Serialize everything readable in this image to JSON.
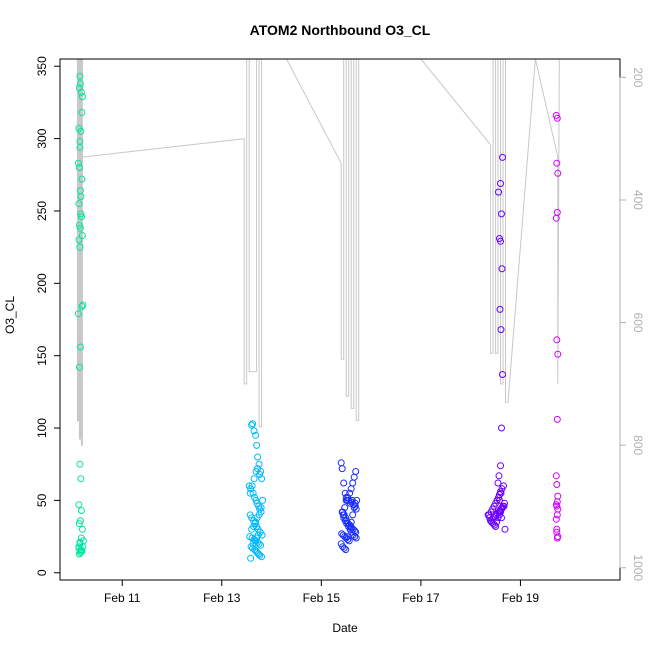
{
  "chart_data": {
    "type": "scatter",
    "title": "ATOM2 Northbound O3_CL",
    "xlabel": "Date",
    "ylabel": "O3_CL",
    "x_ticks": [
      "Feb 11",
      "Feb 13",
      "Feb 15",
      "Feb 17",
      "Feb 19"
    ],
    "x_tick_values": [
      11,
      13,
      15,
      17,
      19
    ],
    "xlim": [
      9.75,
      21.0
    ],
    "ylim": [
      -5,
      355
    ],
    "y_ticks": [
      0,
      50,
      100,
      150,
      200,
      250,
      300,
      350
    ],
    "y2_label": "",
    "y2_ticks": [
      200,
      400,
      600,
      800,
      1000
    ],
    "y2_lim": [
      1020,
      170
    ],
    "y2_reversed": true,
    "colors": {
      "flight1": "#00e5a0",
      "flight2": "#00b8ff",
      "flight3": "#1a2fff",
      "flight4": "#6a00ff",
      "flight5": "#d600ff",
      "profile": "#c8c8c8"
    },
    "series": [
      {
        "color_key": "flight1",
        "x": [
          10.15,
          10.16,
          10.18,
          10.14,
          10.13,
          10.17,
          10.15,
          10.2,
          10.19,
          10.12,
          10.14,
          10.16,
          10.18,
          10.13,
          10.15,
          10.17,
          10.19,
          10.14,
          10.16,
          10.2,
          10.13,
          10.15,
          10.18,
          10.17,
          10.12,
          10.14,
          10.16,
          10.21,
          10.19,
          10.15,
          10.17,
          10.13,
          10.18,
          10.16,
          10.14,
          10.2,
          10.22,
          10.15,
          10.13,
          10.17,
          10.19,
          10.16,
          10.14,
          10.18,
          10.15,
          10.21,
          10.13,
          10.17
        ],
        "y": [
          343,
          338,
          332,
          335,
          307,
          305,
          298,
          329,
          318,
          283,
          280,
          264,
          246,
          255,
          294,
          260,
          272,
          240,
          238,
          233,
          230,
          225,
          246,
          248,
          179,
          142,
          156,
          185,
          184,
          75,
          65,
          47,
          43,
          36,
          34,
          30,
          22,
          20,
          18,
          16,
          15,
          14,
          13,
          24,
          21,
          18,
          17,
          15
        ]
      },
      {
        "color_key": "flight2",
        "x": [
          13.6,
          13.62,
          13.65,
          13.68,
          13.7,
          13.72,
          13.75,
          13.78,
          13.8,
          13.55,
          13.58,
          13.63,
          13.66,
          13.69,
          13.71,
          13.74,
          13.76,
          13.79,
          13.57,
          13.6,
          13.64,
          13.67,
          13.7,
          13.73,
          13.77,
          13.81,
          13.56,
          13.61,
          13.65,
          13.68,
          13.72,
          13.75,
          13.78,
          13.59,
          13.62,
          13.66,
          13.69,
          13.71,
          13.74,
          13.76,
          13.8,
          13.58,
          13.63,
          13.67,
          13.7,
          13.73,
          13.77,
          13.6,
          13.64,
          13.68,
          13.71,
          13.75,
          13.79,
          13.82,
          13.57,
          13.61,
          13.65,
          13.69,
          13.72,
          13.76
        ],
        "y": [
          102,
          103,
          98,
          95,
          88,
          80,
          75,
          70,
          65,
          60,
          58,
          55,
          52,
          50,
          48,
          46,
          44,
          42,
          40,
          38,
          36,
          34,
          32,
          30,
          28,
          26,
          25,
          24,
          23,
          22,
          21,
          20,
          19,
          18,
          17,
          16,
          15,
          14,
          13,
          12,
          11,
          10,
          20,
          22,
          24,
          26,
          28,
          30,
          32,
          35,
          38,
          40,
          45,
          50,
          55,
          60,
          65,
          70,
          72,
          68
        ]
      },
      {
        "color_key": "flight3",
        "x": [
          15.4,
          15.42,
          15.45,
          15.48,
          15.5,
          15.52,
          15.55,
          15.58,
          15.6,
          15.62,
          15.65,
          15.68,
          15.7,
          15.43,
          15.46,
          15.49,
          15.51,
          15.54,
          15.57,
          15.59,
          15.61,
          15.64,
          15.67,
          15.69,
          15.41,
          15.44,
          15.47,
          15.5,
          15.53,
          15.56,
          15.58,
          15.6,
          15.63,
          15.66,
          15.68,
          15.71,
          15.42,
          15.45,
          15.48,
          15.51,
          15.55,
          15.58,
          15.61,
          15.64,
          15.67,
          15.7,
          15.44,
          15.47,
          15.5,
          15.53,
          15.57,
          15.6,
          15.63,
          15.66,
          15.69,
          15.4,
          15.43,
          15.46,
          15.49,
          15.52
        ],
        "y": [
          76,
          72,
          62,
          55,
          52,
          50,
          50,
          48,
          49,
          50,
          47,
          46,
          44,
          42,
          40,
          38,
          36,
          34,
          33,
          32,
          31,
          30,
          29,
          28,
          27,
          26,
          25,
          24,
          23,
          22,
          30,
          35,
          40,
          45,
          48,
          50,
          42,
          38,
          36,
          34,
          32,
          30,
          28,
          26,
          25,
          24,
          40,
          45,
          50,
          52,
          55,
          58,
          62,
          66,
          70,
          20,
          18,
          17,
          16,
          25
        ]
      },
      {
        "color_key": "flight4",
        "x": [
          18.35,
          18.38,
          18.4,
          18.42,
          18.45,
          18.48,
          18.5,
          18.52,
          18.55,
          18.58,
          18.6,
          18.62,
          18.65,
          18.68,
          18.4,
          18.43,
          18.46,
          18.49,
          18.51,
          18.54,
          18.57,
          18.59,
          18.61,
          18.64,
          18.67,
          18.37,
          18.41,
          18.44,
          18.47,
          18.5,
          18.53,
          18.56,
          18.58,
          18.6,
          18.63,
          18.66,
          18.69,
          18.55,
          18.57,
          18.6,
          18.62,
          18.64,
          18.61,
          18.59,
          18.63,
          18.6,
          18.58,
          18.62,
          18.56,
          18.6,
          18.64,
          18.58,
          18.61,
          18.63,
          18.59,
          18.62
        ],
        "y": [
          40,
          38,
          36,
          35,
          34,
          33,
          32,
          35,
          38,
          40,
          42,
          44,
          46,
          48,
          36,
          37,
          38,
          39,
          40,
          41,
          42,
          43,
          44,
          45,
          46,
          40,
          42,
          44,
          46,
          48,
          50,
          52,
          54,
          56,
          58,
          60,
          30,
          62,
          67,
          74,
          100,
          137,
          168,
          182,
          210,
          229,
          231,
          248,
          263,
          269,
          287,
          50,
          55,
          45,
          42,
          38
        ]
      },
      {
        "color_key": "flight5",
        "x": [
          19.72,
          19.74,
          19.73,
          19.75,
          19.74,
          19.72,
          19.73,
          19.75,
          19.74,
          19.72,
          19.73,
          19.75,
          19.74,
          19.72,
          19.73,
          19.75,
          19.74,
          19.72,
          19.73,
          19.75,
          19.74,
          19.73
        ],
        "y": [
          316,
          314,
          283,
          276,
          249,
          245,
          161,
          151,
          106,
          67,
          61,
          53,
          49,
          47,
          46,
          44,
          40,
          37,
          28,
          25,
          24,
          30
        ]
      }
    ],
    "profiles": {
      "color_key": "profile",
      "x": [
        10.1,
        10.1,
        10.12,
        10.12,
        10.14,
        10.14,
        10.16,
        10.16,
        10.18,
        10.18,
        10.2,
        10.2,
        10.2,
        13.45,
        13.45,
        13.5,
        13.5,
        13.55,
        13.55,
        13.7,
        13.7,
        13.75,
        13.75,
        13.8,
        13.8,
        13.85,
        14.3,
        15.4,
        15.4,
        15.45,
        15.45,
        15.5,
        15.5,
        15.55,
        15.55,
        15.6,
        15.6,
        15.65,
        15.65,
        15.7,
        15.7,
        15.75,
        15.75,
        15.8,
        17.0,
        18.4,
        18.4,
        18.45,
        18.45,
        18.5,
        18.5,
        18.55,
        18.55,
        18.6,
        18.6,
        18.65,
        18.65,
        18.7,
        18.7,
        18.75,
        19.3,
        19.75,
        19.75,
        19.78
      ],
      "p": [
        170,
        760,
        760,
        170,
        170,
        790,
        790,
        170,
        170,
        800,
        800,
        170,
        330,
        300,
        700,
        700,
        170,
        170,
        680,
        680,
        170,
        170,
        770,
        770,
        170,
        170,
        170,
        340,
        660,
        660,
        170,
        170,
        720,
        720,
        170,
        170,
        740,
        740,
        170,
        170,
        760,
        760,
        170,
        170,
        170,
        310,
        650,
        650,
        170,
        170,
        650,
        650,
        170,
        170,
        700,
        700,
        170,
        170,
        730,
        730,
        170,
        330,
        700,
        170
      ]
    }
  }
}
